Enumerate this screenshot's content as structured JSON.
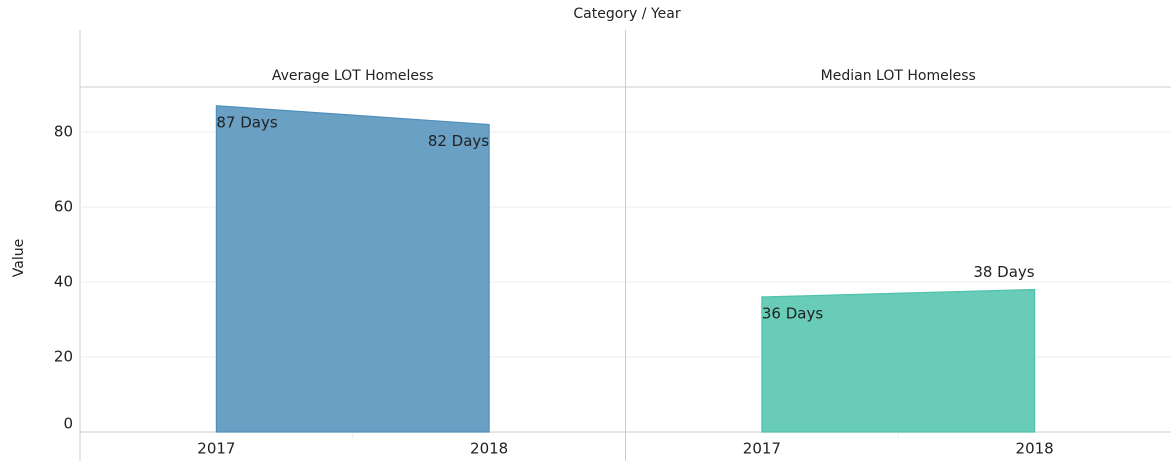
{
  "chart_data": {
    "type": "area",
    "title": "Category / Year",
    "y_label": "Value",
    "categories": [
      "2017",
      "2018"
    ],
    "series": [
      {
        "name": "Average LOT Homeless",
        "color": "#4f8fba",
        "values": [
          87,
          82
        ],
        "value_labels": [
          "87 Days",
          "82 Days"
        ]
      },
      {
        "name": "Median LOT Homeless",
        "color": "#4fc3ab",
        "values": [
          36,
          38
        ],
        "value_labels": [
          "36 Days",
          "38 Days"
        ]
      }
    ],
    "ylim": [
      0,
      92
    ],
    "yticks": [
      0,
      20,
      40,
      60,
      80
    ],
    "grid": true
  }
}
